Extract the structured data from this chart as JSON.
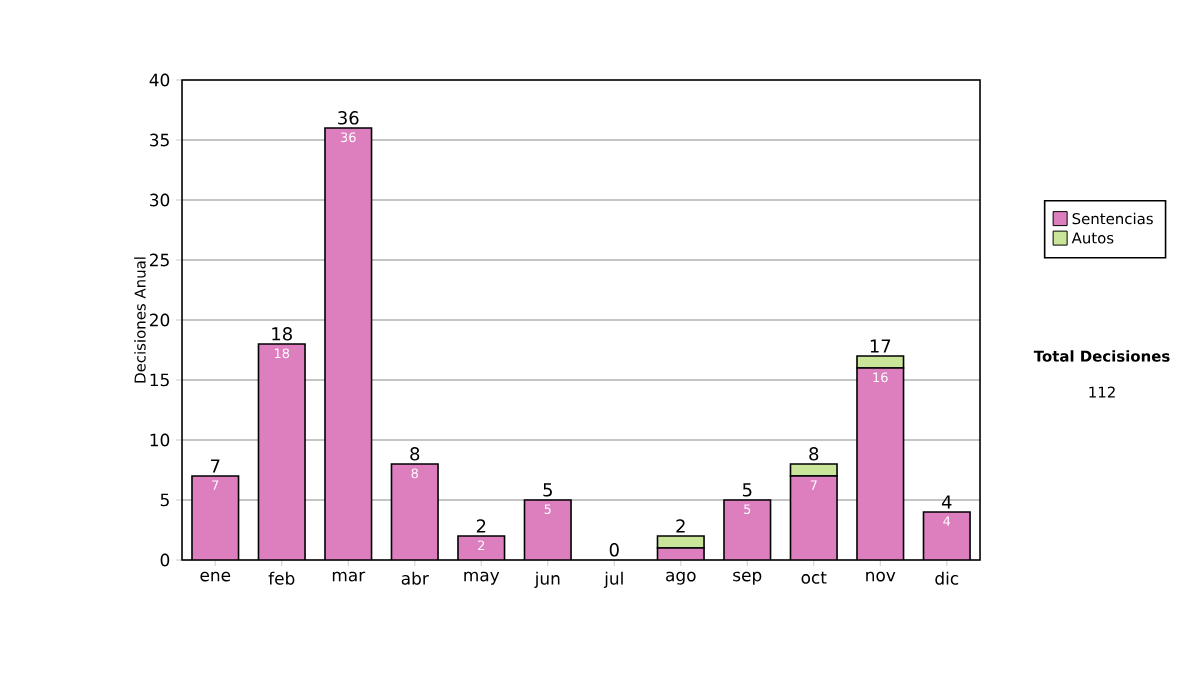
{
  "chart_data": {
    "type": "bar",
    "stacked": true,
    "ylabel": "Decisiones Anual",
    "categories": [
      "ene",
      "feb",
      "mar",
      "abr",
      "may",
      "jun",
      "jul",
      "ago",
      "sep",
      "oct",
      "nov",
      "dic"
    ],
    "series": [
      {
        "name": "Sentencias",
        "color": "#dd7fbf",
        "values": [
          7,
          18,
          36,
          8,
          2,
          5,
          0,
          1,
          5,
          7,
          16,
          4
        ],
        "value_labels": [
          "7",
          "18",
          "36",
          "8",
          "2",
          "5",
          null,
          null,
          "5",
          "7",
          "16",
          "4"
        ]
      },
      {
        "name": "Autos",
        "color": "#c8e59a",
        "values": [
          0,
          0,
          0,
          0,
          0,
          0,
          0,
          1,
          0,
          1,
          1,
          0
        ]
      }
    ],
    "totals": [
      "7",
      "18",
      "36",
      "8",
      "2",
      "5",
      "0",
      "2",
      "5",
      "8",
      "17",
      "4"
    ],
    "ylim": [
      0,
      40
    ],
    "yticks": [
      0,
      5,
      10,
      15,
      20,
      25,
      30,
      35,
      40
    ],
    "grid": "y",
    "legend": "right",
    "annotations": [
      "**Total Decisiones**",
      "112"
    ]
  }
}
